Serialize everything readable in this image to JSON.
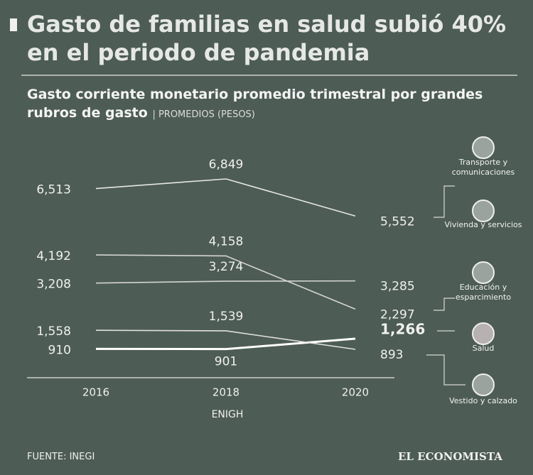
{
  "chart_data": {
    "type": "line",
    "title": "Gasto de familias en salud subió 40% en el periodo de pandemia",
    "subtitle": "Gasto corriente monetario promedio trimestral por grandes rubros de gasto",
    "unit_note": "PROMEDIOS (PESOS)",
    "x_label": "ENIGH",
    "source": "FUENTE: INEGI",
    "brand": "EL ECONOMISTA",
    "categories": [
      "2016",
      "2018",
      "2020"
    ],
    "series": [
      {
        "name": "Transporte y comunicaciones",
        "color": "#e6e6e6",
        "values": [
          6513,
          6849,
          5552
        ],
        "value_labels": [
          "6,513",
          "6,849",
          "5,552"
        ]
      },
      {
        "name": "Vivienda y servicios",
        "color": "#d4d4d4",
        "values": [
          3208,
          3274,
          3285
        ],
        "value_labels": [
          "3,208",
          "3,274",
          "3,285"
        ]
      },
      {
        "name": "Educación y esparcimiento",
        "color": "#d4d4d4",
        "values": [
          4192,
          4158,
          2297
        ],
        "value_labels": [
          "4,192",
          "4,158",
          "2,297"
        ]
      },
      {
        "name": "Salud",
        "color": "#ffffff",
        "values": [
          910,
          901,
          1266
        ],
        "value_labels": [
          "910",
          "901",
          "1,266"
        ]
      },
      {
        "name": "Vestido y calzado",
        "color": "#e0e0e0",
        "values": [
          1558,
          1539,
          893
        ],
        "value_labels": [
          "1,558",
          "1,539",
          "893"
        ]
      }
    ]
  }
}
